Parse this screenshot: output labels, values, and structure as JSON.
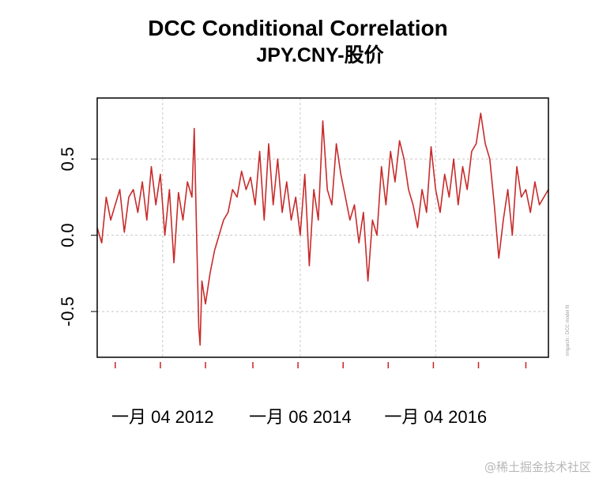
{
  "chart_data": {
    "type": "line",
    "title": "DCC Conditional Correlation",
    "subtitle": "JPY.CNY-股价",
    "xlabel": "",
    "ylabel": "",
    "ylim": [
      -0.8,
      0.9
    ],
    "xlim": [
      0,
      1000
    ],
    "grid": true,
    "yticks": [
      -0.5,
      0.0,
      0.5
    ],
    "ytick_labels": [
      "-0.5",
      "0.0",
      "0.5"
    ],
    "xtick_labels": [
      "一月 04 2012",
      "一月 06 2014",
      "一月 04 2016"
    ],
    "xtick_label_positions": [
      145,
      450,
      750
    ],
    "xtick_marks": [
      40,
      140,
      240,
      345,
      445,
      545,
      645,
      745,
      845,
      950
    ],
    "side_note": "rmgarch : DCC model fit",
    "series": [
      {
        "name": "DCC Conditional Correlation",
        "color": "#c82b2b",
        "x": [
          0,
          10,
          20,
          30,
          40,
          50,
          60,
          70,
          80,
          90,
          100,
          110,
          120,
          130,
          140,
          150,
          160,
          170,
          180,
          190,
          200,
          210,
          215,
          220,
          225,
          228,
          232,
          240,
          250,
          260,
          270,
          280,
          290,
          300,
          310,
          320,
          330,
          340,
          350,
          360,
          370,
          380,
          390,
          400,
          410,
          420,
          430,
          440,
          450,
          460,
          470,
          480,
          490,
          500,
          510,
          520,
          530,
          540,
          550,
          560,
          570,
          580,
          590,
          600,
          610,
          620,
          630,
          640,
          650,
          660,
          670,
          680,
          690,
          700,
          710,
          720,
          730,
          740,
          750,
          760,
          770,
          780,
          790,
          800,
          810,
          820,
          830,
          840,
          850,
          860,
          870,
          880,
          890,
          900,
          910,
          920,
          930,
          940,
          950,
          960,
          970,
          980,
          990,
          1000
        ],
        "values": [
          0.05,
          -0.05,
          0.25,
          0.1,
          0.2,
          0.3,
          0.02,
          0.25,
          0.3,
          0.15,
          0.35,
          0.1,
          0.45,
          0.2,
          0.4,
          0.0,
          0.3,
          -0.18,
          0.28,
          0.1,
          0.35,
          0.25,
          0.7,
          0.05,
          -0.6,
          -0.72,
          -0.3,
          -0.45,
          -0.25,
          -0.1,
          0.0,
          0.1,
          0.15,
          0.3,
          0.25,
          0.42,
          0.3,
          0.38,
          0.2,
          0.55,
          0.1,
          0.6,
          0.2,
          0.5,
          0.15,
          0.35,
          0.1,
          0.25,
          0.0,
          0.4,
          -0.2,
          0.3,
          0.1,
          0.75,
          0.3,
          0.2,
          0.6,
          0.4,
          0.25,
          0.1,
          0.2,
          -0.05,
          0.15,
          -0.3,
          0.1,
          0.0,
          0.45,
          0.2,
          0.55,
          0.35,
          0.62,
          0.5,
          0.3,
          0.2,
          0.05,
          0.3,
          0.15,
          0.58,
          0.3,
          0.15,
          0.4,
          0.25,
          0.5,
          0.2,
          0.45,
          0.3,
          0.55,
          0.6,
          0.8,
          0.6,
          0.5,
          0.2,
          -0.15,
          0.1,
          0.3,
          0.0,
          0.45,
          0.25,
          0.3,
          0.15,
          0.35,
          0.2,
          0.25,
          0.3
        ]
      }
    ]
  },
  "watermark": "@稀土掘金技术社区"
}
